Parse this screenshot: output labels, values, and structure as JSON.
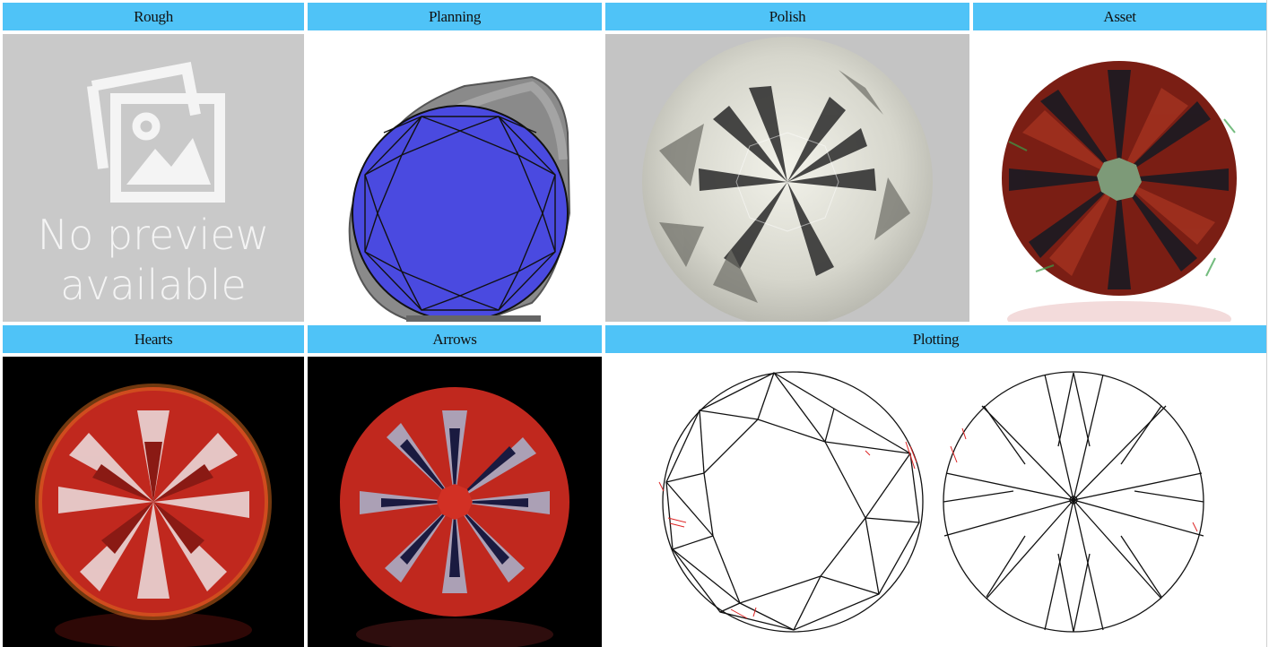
{
  "headers": {
    "rough": "Rough",
    "planning": "Planning",
    "polish": "Polish",
    "asset": "Asset",
    "hearts": "Hearts",
    "arrows": "Arrows",
    "plotting": "Plotting"
  },
  "rough_placeholder": {
    "line1": "No preview",
    "line2": "available",
    "icon": "image-placeholder-icon"
  },
  "colors": {
    "header_bg": "#4fc3f7",
    "planning_facet": "#4a4ae0",
    "hearts_red": "#c0281e"
  }
}
